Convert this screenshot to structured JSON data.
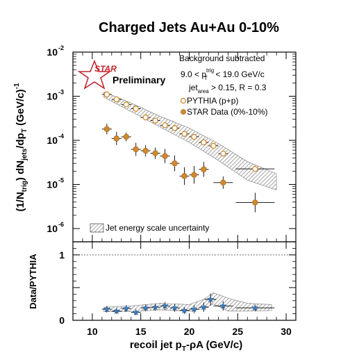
{
  "chart_data": [
    {
      "type": "scatter",
      "title": "Charged Jets Au+Au 0-10%",
      "ylabel": "(1/N_trig) dN_jets/dp_T (GeV/c)^-1",
      "xlim": [
        8,
        31
      ],
      "ylim_log10": [
        -6.3,
        -2
      ],
      "yscale": "log",
      "y_tick_labels": [
        "10",
        "10",
        "10",
        "10",
        "10"
      ],
      "y_tick_exponents": [
        "-2",
        "-3",
        "-4",
        "-5",
        "-6"
      ],
      "annotations": {
        "logo_text": "STAR",
        "preliminary": "Preliminary",
        "bg_subtracted": "Background subtracted",
        "trig_range": "9.0 < p_T^trig < 19.0 GeV/c",
        "jet_area": "jet_area > 0.15, R = 0.3"
      },
      "legend": {
        "placement": "top-right",
        "entries": [
          "PYTHIA (p+p)",
          "STAR Data (0%-10%)"
        ]
      },
      "band_legend": "Jet energy scale uncertainty",
      "series": [
        {
          "name": "PYTHIA (p+p)",
          "marker": "open-circle",
          "color": "#d08a2e",
          "x": [
            11.5,
            12.5,
            13.5,
            14.5,
            15.5,
            16.5,
            17.5,
            18.5,
            19.5,
            20.5,
            21.5,
            22.5,
            23.5,
            26.8
          ],
          "y": [
            0.0011,
            0.00085,
            0.00065,
            0.00052,
            0.00033,
            0.00028,
            0.00022,
            0.00019,
            0.00014,
            0.00012,
            9e-05,
            7.5e-05,
            5e-05,
            2.25e-05
          ],
          "xerr": [
            0.5,
            0.5,
            0.5,
            0.5,
            0.5,
            0.5,
            0.5,
            0.5,
            0.5,
            0.5,
            0.5,
            0.5,
            0.5,
            2.0
          ]
        },
        {
          "name": "STAR Data (0%-10%)",
          "marker": "filled-circle",
          "color": "#d08a2e",
          "x": [
            11.5,
            12.5,
            13.5,
            14.5,
            15.5,
            16.5,
            17.5,
            18.5,
            19.5,
            20.5,
            21.5,
            23.5,
            26.8
          ],
          "y": [
            0.00018,
            0.00011,
            0.00012,
            6.25e-05,
            5.8e-05,
            5.1e-05,
            4.4e-05,
            3e-05,
            1.55e-05,
            1.65e-05,
            2.2e-05,
            1.1e-05,
            3.9e-06
          ],
          "xerr": [
            0.5,
            0.5,
            0.5,
            0.5,
            0.5,
            0.5,
            0.5,
            0.5,
            0.5,
            0.5,
            0.5,
            1.0,
            2.0
          ],
          "yerr_log": [
            0.12,
            0.15,
            0.1,
            0.15,
            0.13,
            0.13,
            0.16,
            0.18,
            0.2,
            0.2,
            0.17,
            0.14,
            0.22
          ]
        }
      ],
      "band": {
        "x": [
          11.2,
          14,
          17,
          20,
          23,
          26,
          29
        ],
        "upper": [
          0.00125,
          0.0007,
          0.00035,
          0.00019,
          8.5e-05,
          3.3e-05,
          1.75e-05
        ],
        "lower": [
          0.00095,
          0.00045,
          0.0002,
          9e-05,
          3.5e-05,
          1.25e-05,
          7.5e-06
        ]
      }
    },
    {
      "type": "scatter",
      "ylabel": "Data/PYTHIA",
      "xlabel": "recoil jet p_T-ρA (GeV/c)",
      "xlim": [
        8,
        31
      ],
      "ylim": [
        0,
        1.2
      ],
      "y_ticks": [
        "0",
        "0.5",
        "1"
      ],
      "x_ticks": [
        "10",
        "15",
        "20",
        "25",
        "30"
      ],
      "reference_line": 1,
      "series": [
        {
          "name": "Data/PYTHIA",
          "marker": "star",
          "color": "#3b7fc4",
          "x": [
            11.5,
            12.5,
            13.5,
            14.5,
            15.5,
            16.5,
            17.5,
            18.5,
            19.5,
            20.5,
            21.5,
            22.2,
            23.5,
            26.8
          ],
          "y": [
            0.17,
            0.14,
            0.18,
            0.12,
            0.19,
            0.2,
            0.22,
            0.19,
            0.15,
            0.17,
            0.2,
            0.32,
            0.22,
            0.19
          ],
          "xerr": [
            0.5,
            0.5,
            0.5,
            0.5,
            0.5,
            0.5,
            0.5,
            0.5,
            0.5,
            0.5,
            0.5,
            0.6,
            1.0,
            2.0
          ],
          "yerr": [
            0.05,
            0.04,
            0.05,
            0.04,
            0.05,
            0.05,
            0.06,
            0.06,
            0.05,
            0.06,
            0.07,
            0.09,
            0.07,
            0.05
          ]
        }
      ],
      "band": {
        "x": [
          11.2,
          14,
          17,
          20,
          21.5,
          22.5,
          24,
          26,
          28.5
        ],
        "upper": [
          0.2,
          0.22,
          0.26,
          0.24,
          0.32,
          0.42,
          0.34,
          0.26,
          0.24
        ],
        "lower": [
          0.13,
          0.13,
          0.16,
          0.14,
          0.18,
          0.25,
          0.14,
          0.14,
          0.15
        ]
      }
    }
  ]
}
